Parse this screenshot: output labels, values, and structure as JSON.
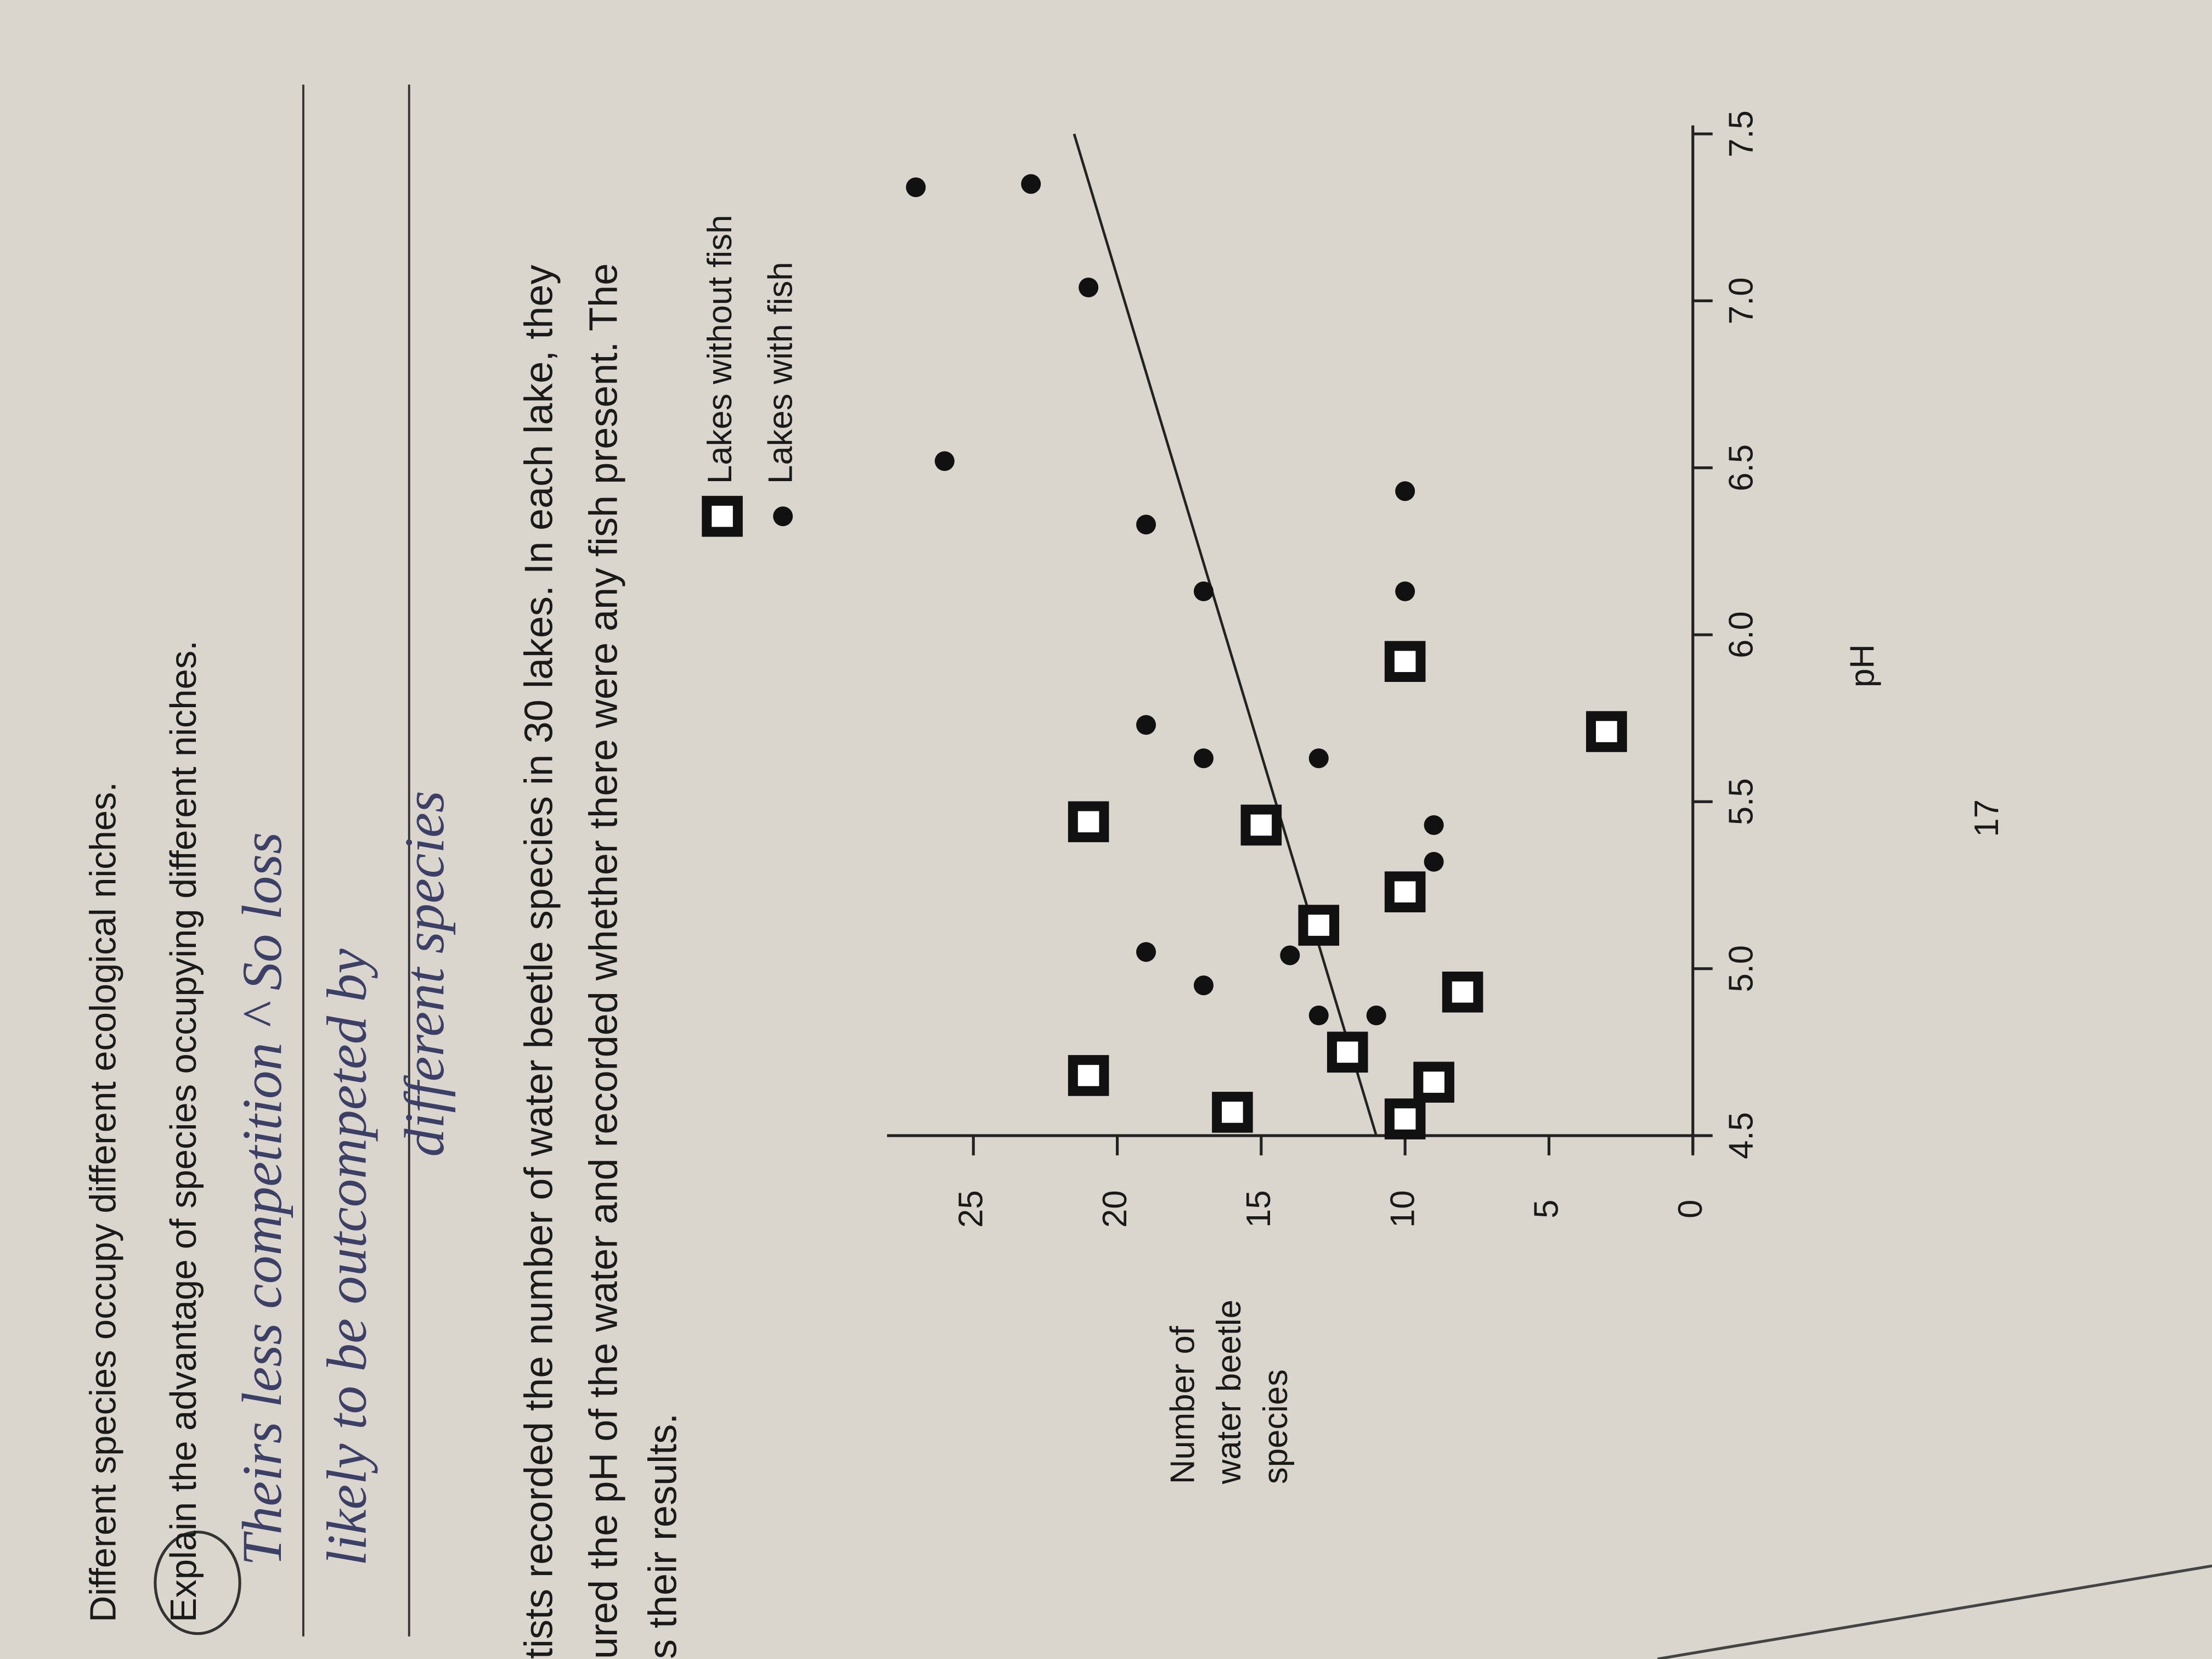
{
  "document": {
    "question_lines": [
      "Different species occupy different ecological niches.",
      "Explain the advantage of species occupying different niches."
    ],
    "handwriting": [
      "Theirs less competition ^ So loss",
      "likely to be outcompeted by",
      "different species"
    ],
    "paragraph": [
      "tists recorded the number of water beetle species in 30 lakes. In each lake, they",
      "ured the pH of the water and recorded whether there were any fish present. The",
      "s their results."
    ],
    "page_number": "17"
  },
  "chart_data": {
    "type": "scatter",
    "x_label": "pH",
    "y_label": [
      "Number of",
      "water beetle",
      "species"
    ],
    "xlim": [
      4.5,
      7.5
    ],
    "xticks": [
      4.5,
      {
        "value": 5,
        "label": "5.0"
      },
      5.5,
      {
        "value": 6,
        "label": "6.0"
      },
      6.5,
      {
        "value": 7,
        "label": "7.0"
      },
      7.5
    ],
    "ylim": [
      0,
      28
    ],
    "yticks": [
      0,
      5,
      10,
      15,
      20,
      25
    ],
    "series": [
      {
        "name": "Lakes without fish",
        "marker": "square",
        "color": "#111111",
        "x": [
          4.68,
          4.57,
          4.55,
          4.66,
          4.75,
          4.93,
          5.13,
          5.23,
          5.43,
          5.44,
          5.71,
          5.92
        ],
        "values": [
          21,
          16,
          10,
          9,
          12,
          8,
          13,
          10,
          15,
          21,
          3,
          10
        ]
      },
      {
        "name": "Lakes with fish",
        "marker": "circle",
        "color": "#111111",
        "x": [
          4.86,
          4.86,
          4.95,
          5.04,
          5.05,
          5.32,
          5.43,
          5.63,
          5.63,
          5.73,
          6.13,
          6.13,
          6.33,
          6.43,
          6.52,
          7.04,
          7.34,
          7.35
        ],
        "values": [
          13,
          11,
          17,
          14,
          19,
          9,
          9,
          13,
          17,
          19,
          10,
          17,
          19,
          10,
          26,
          21,
          27,
          23
        ]
      }
    ],
    "trend_line": {
      "x": [
        4.5,
        7.5
      ],
      "y": [
        11,
        21.5
      ],
      "color": "#222222"
    }
  }
}
